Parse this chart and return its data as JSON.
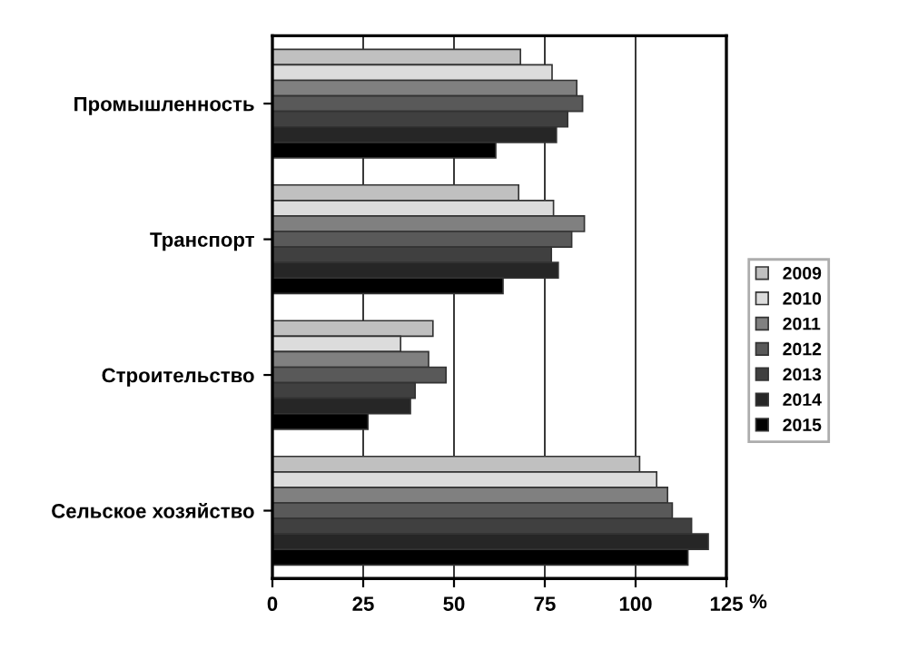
{
  "chart_data": {
    "type": "bar",
    "orientation": "horizontal",
    "xlabel": "%",
    "categories": [
      "Промышленность",
      "Транспорт",
      "Строительство",
      "Сельское хозяйство"
    ],
    "series": [
      {
        "name": "2009",
        "color": "#c0c0c0",
        "values": [
          68.3,
          67.8,
          44.2,
          101.1
        ]
      },
      {
        "name": "2010",
        "color": "#dcdcdc",
        "values": [
          77,
          77.4,
          35.3,
          105.8
        ]
      },
      {
        "name": "2011",
        "color": "#808080",
        "values": [
          83.8,
          85.9,
          43,
          108.8
        ]
      },
      {
        "name": "2012",
        "color": "#595959",
        "values": [
          85.4,
          82.4,
          47.8,
          110.1
        ]
      },
      {
        "name": "2013",
        "color": "#404040",
        "values": [
          81.3,
          76.8,
          39.3,
          115.4
        ]
      },
      {
        "name": "2014",
        "color": "#262626",
        "values": [
          78.2,
          78.7,
          38,
          120
        ]
      },
      {
        "name": "2015",
        "color": "#000000",
        "values": [
          61.5,
          63.5,
          26.3,
          114.4
        ]
      }
    ],
    "xlim": [
      0,
      125
    ],
    "xticks": [
      0,
      25,
      50,
      75,
      100,
      125
    ],
    "grid": "x",
    "legend": "right"
  }
}
